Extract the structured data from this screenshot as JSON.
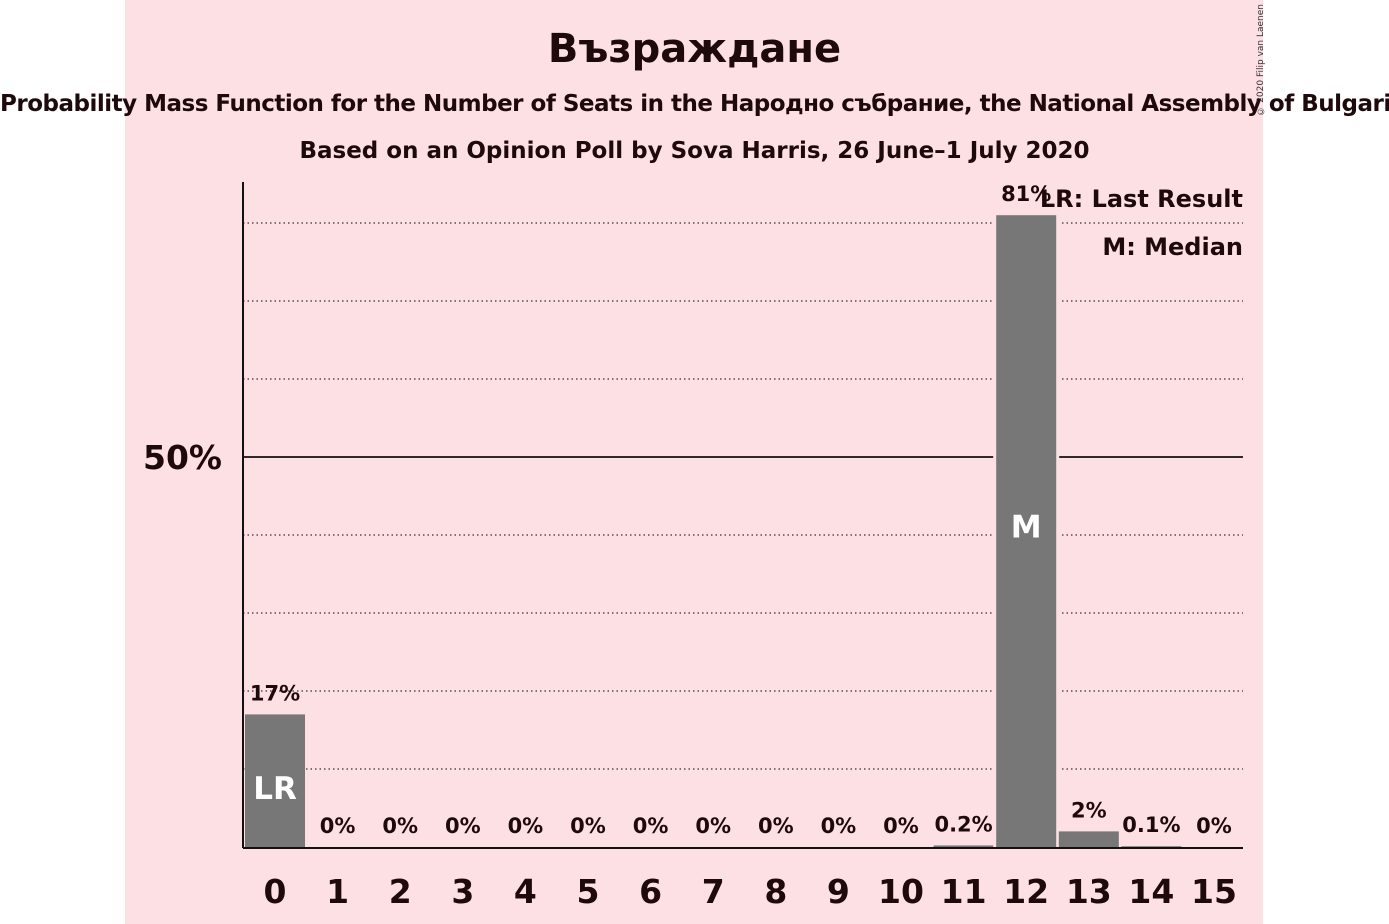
{
  "header": {
    "title": "Възраждане",
    "subtitle": "Probability Mass Function for the Number of Seats in the Народно събрание, the National Assembly of Bulgaria",
    "source": "Based on an Opinion Poll by Sova Harris, 26 June–1 July 2020",
    "copyright": "© 2020 Filip van Laenen"
  },
  "legend": {
    "last_result": "LR: Last Result",
    "median": "M: Median"
  },
  "colors": {
    "background": "#fde0e4",
    "bar": "#777777",
    "text": "#1e0a0a"
  },
  "chart_data": {
    "type": "bar",
    "categories": [
      "0",
      "1",
      "2",
      "3",
      "4",
      "5",
      "6",
      "7",
      "8",
      "9",
      "10",
      "11",
      "12",
      "13",
      "14",
      "15"
    ],
    "values": [
      17,
      0,
      0,
      0,
      0,
      0,
      0,
      0,
      0,
      0,
      0,
      0.2,
      81,
      2,
      0.1,
      0
    ],
    "value_labels": [
      "17%",
      "0%",
      "0%",
      "0%",
      "0%",
      "0%",
      "0%",
      "0%",
      "0%",
      "0%",
      "0%",
      "0.2%",
      "81%",
      "2%",
      "0.1%",
      "0%"
    ],
    "bar_markers": {
      "0": "LR",
      "12": "M"
    },
    "ylim": [
      0,
      88
    ],
    "y_ticks": [
      {
        "value": 50,
        "label": "50%"
      }
    ],
    "gridlines": [
      10,
      20,
      30,
      40,
      60,
      70,
      80
    ],
    "grid": true,
    "legend_placement": "top-right"
  }
}
